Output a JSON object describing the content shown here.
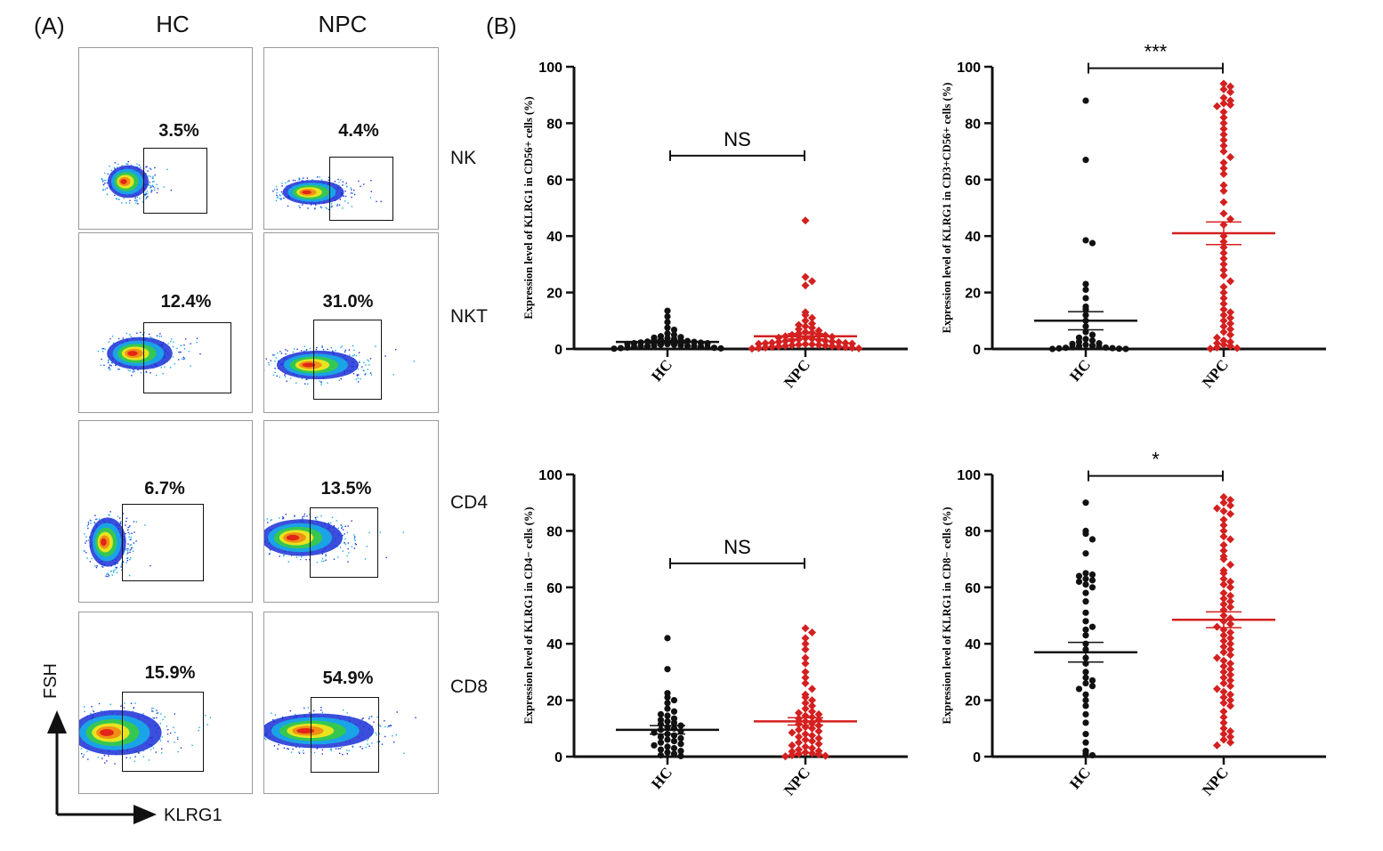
{
  "panel_a": {
    "label": "(A)",
    "columns": [
      "HC",
      "NPC"
    ],
    "rows": [
      {
        "label": "NK",
        "hc_pct": "3.5%",
        "npc_pct": "4.4%"
      },
      {
        "label": "NKT",
        "hc_pct": "12.4%",
        "npc_pct": "31.0%"
      },
      {
        "label": "CD4",
        "hc_pct": "6.7%",
        "npc_pct": "13.5%"
      },
      {
        "label": "CD8",
        "hc_pct": "15.9%",
        "npc_pct": "54.9%"
      }
    ],
    "y_axis_label": "FSH",
    "x_axis_label": "KLRG1",
    "density_colors": [
      "#1a2fd6",
      "#18a8e6",
      "#37c94a",
      "#f2e51c",
      "#f08a16",
      "#e02018"
    ]
  },
  "panel_b": {
    "label": "(B)"
  },
  "chart_data": [
    {
      "type": "scatter",
      "ylabel": "Expression level of KLRG1 in CD56+ cells (%)",
      "categories": [
        "HC",
        "NPC"
      ],
      "ylim": [
        0,
        100
      ],
      "yticks": [
        0,
        20,
        40,
        60,
        80,
        100
      ],
      "significance": "NS",
      "series": [
        {
          "name": "HC",
          "color": "#111111",
          "mean": 2.5,
          "sem": 0.5,
          "values": [
            13.5,
            11.5,
            9.5,
            7.5,
            6.8,
            5.5,
            5.0,
            4.5,
            4.2,
            4.0,
            3.8,
            3.5,
            3.2,
            3.0,
            3.0,
            2.8,
            2.6,
            2.5,
            2.3,
            2.2,
            2.0,
            2.0,
            1.8,
            1.7,
            1.5,
            1.5,
            1.3,
            1.2,
            1.1,
            1.0,
            1.0,
            0.9,
            0.8,
            0.7,
            0.6,
            0.5,
            0.4,
            0.3,
            0.2,
            0.1
          ]
        },
        {
          "name": "NPC",
          "color": "#d42020",
          "mean": 4.5,
          "sem": 0.9,
          "values": [
            45.5,
            25.5,
            24.0,
            22.5,
            13.0,
            12.0,
            11.0,
            10.0,
            9.0,
            8.5,
            8.0,
            7.5,
            7.0,
            6.5,
            6.0,
            5.8,
            5.5,
            5.2,
            5.0,
            4.8,
            4.5,
            4.3,
            4.0,
            3.8,
            3.6,
            3.4,
            3.2,
            3.0,
            2.9,
            2.8,
            2.6,
            2.5,
            2.4,
            2.2,
            2.1,
            2.0,
            1.9,
            1.8,
            1.7,
            1.6,
            1.5,
            1.4,
            1.3,
            1.2,
            1.1,
            1.0,
            0.9,
            0.8,
            0.7,
            0.6,
            0.5,
            0.4,
            0.3,
            0.2,
            0.1
          ]
        }
      ]
    },
    {
      "type": "scatter",
      "ylabel": "Expression level of KLRG1 in CD3+CD56+ cells (%)",
      "categories": [
        "HC",
        "NPC"
      ],
      "ylim": [
        0,
        100
      ],
      "yticks": [
        0,
        20,
        40,
        60,
        80,
        100
      ],
      "significance": "***",
      "series": [
        {
          "name": "HC",
          "color": "#111111",
          "mean": 10.0,
          "sem": 3.2,
          "values": [
            88.0,
            67.0,
            38.5,
            37.5,
            23.0,
            21.0,
            18.0,
            15.0,
            14.0,
            12.0,
            10.0,
            8.0,
            6.0,
            5.0,
            4.0,
            3.5,
            3.0,
            2.5,
            2.0,
            1.8,
            1.5,
            1.2,
            1.0,
            0.8,
            0.6,
            0.5,
            0.4,
            0.3,
            0.2,
            0.1,
            0.0,
            0.0
          ]
        },
        {
          "name": "NPC",
          "color": "#d42020",
          "mean": 41.0,
          "sem": 4.0,
          "values": [
            94.0,
            93.0,
            92.0,
            91.0,
            89.0,
            88.0,
            87.0,
            86.5,
            86.0,
            84.0,
            82.0,
            80.0,
            78.0,
            76.0,
            74.0,
            72.0,
            70.0,
            68.0,
            66.0,
            64.0,
            62.0,
            58.0,
            56.0,
            52.0,
            48.0,
            46.0,
            44.0,
            40.0,
            38.0,
            36.0,
            34.0,
            32.0,
            30.0,
            28.0,
            26.0,
            24.0,
            22.0,
            20.0,
            18.0,
            16.0,
            14.0,
            13.0,
            12.0,
            11.0,
            10.0,
            9.0,
            8.0,
            7.0,
            6.0,
            5.0,
            4.0,
            3.0,
            2.5,
            2.0,
            1.5,
            1.0,
            0.5,
            0.3,
            0.1
          ]
        }
      ]
    },
    {
      "type": "scatter",
      "ylabel": "Expression level of KLRG1 in CD4− cells (%)",
      "categories": [
        "HC",
        "NPC"
      ],
      "ylim": [
        0,
        100
      ],
      "yticks": [
        0,
        20,
        40,
        60,
        80,
        100
      ],
      "significance": "NS",
      "series": [
        {
          "name": "HC",
          "color": "#111111",
          "mean": 9.5,
          "sem": 1.5,
          "values": [
            42.0,
            31.0,
            22.5,
            21.0,
            20.0,
            19.0,
            17.0,
            16.0,
            15.0,
            14.5,
            13.5,
            13.0,
            12.5,
            12.0,
            11.5,
            11.0,
            10.5,
            10.0,
            9.5,
            9.0,
            8.5,
            8.0,
            7.5,
            7.0,
            6.5,
            6.0,
            5.5,
            5.0,
            4.5,
            4.0,
            3.5,
            3.0,
            2.5,
            2.0,
            1.5,
            1.0,
            0.5,
            0.2
          ]
        },
        {
          "name": "NPC",
          "color": "#d42020",
          "mean": 12.5,
          "sem": 1.3,
          "values": [
            45.5,
            44.0,
            42.0,
            40.0,
            38.0,
            35.0,
            33.0,
            30.0,
            28.0,
            26.0,
            24.0,
            22.0,
            21.0,
            20.0,
            19.0,
            18.0,
            17.0,
            16.0,
            15.5,
            15.0,
            14.5,
            14.0,
            13.5,
            13.0,
            12.5,
            12.0,
            11.5,
            11.0,
            10.5,
            10.0,
            9.5,
            9.0,
            8.5,
            8.0,
            7.5,
            7.0,
            6.5,
            6.0,
            5.5,
            5.0,
            4.5,
            4.0,
            3.5,
            3.0,
            2.5,
            2.0,
            1.8,
            1.5,
            1.2,
            1.0,
            0.8,
            0.5,
            0.3,
            0.1
          ]
        }
      ]
    },
    {
      "type": "scatter",
      "ylabel": "Expression level of KLRG1 in CD8− cells (%)",
      "categories": [
        "HC",
        "NPC"
      ],
      "ylim": [
        0,
        100
      ],
      "yticks": [
        0,
        20,
        40,
        60,
        80,
        100
      ],
      "significance": "*",
      "series": [
        {
          "name": "HC",
          "color": "#111111",
          "mean": 37.0,
          "sem": 3.5,
          "values": [
            90.0,
            80.0,
            79.0,
            77.0,
            72.0,
            65.0,
            64.5,
            64.0,
            63.0,
            62.5,
            62.0,
            61.0,
            60.0,
            58.0,
            55.0,
            51.0,
            48.0,
            46.0,
            45.0,
            43.0,
            40.0,
            38.0,
            35.0,
            33.0,
            30.0,
            28.0,
            27.0,
            26.0,
            25.0,
            24.0,
            22.0,
            20.0,
            18.0,
            15.0,
            12.0,
            8.0,
            5.0,
            2.0,
            1.0,
            0.5
          ]
        },
        {
          "name": "NPC",
          "color": "#d42020",
          "mean": 48.5,
          "sem": 2.8,
          "values": [
            92.0,
            91.0,
            90.0,
            89.0,
            88.0,
            87.0,
            86.0,
            84.0,
            82.0,
            80.0,
            78.0,
            77.0,
            75.0,
            73.0,
            71.0,
            70.0,
            68.0,
            66.0,
            65.0,
            63.0,
            62.0,
            61.0,
            60.0,
            58.0,
            57.0,
            56.0,
            55.0,
            54.0,
            53.0,
            52.0,
            50.0,
            49.0,
            48.0,
            47.0,
            46.0,
            45.0,
            44.0,
            43.0,
            42.0,
            41.0,
            40.0,
            39.0,
            38.0,
            37.0,
            36.0,
            35.0,
            34.0,
            33.0,
            32.0,
            31.0,
            30.0,
            29.0,
            28.0,
            27.0,
            26.0,
            25.0,
            24.0,
            23.0,
            22.0,
            21.0,
            20.0,
            19.0,
            18.0,
            16.0,
            14.0,
            12.0,
            10.0,
            9.0,
            8.0,
            7.0,
            6.0,
            5.0,
            4.0
          ]
        }
      ]
    }
  ]
}
